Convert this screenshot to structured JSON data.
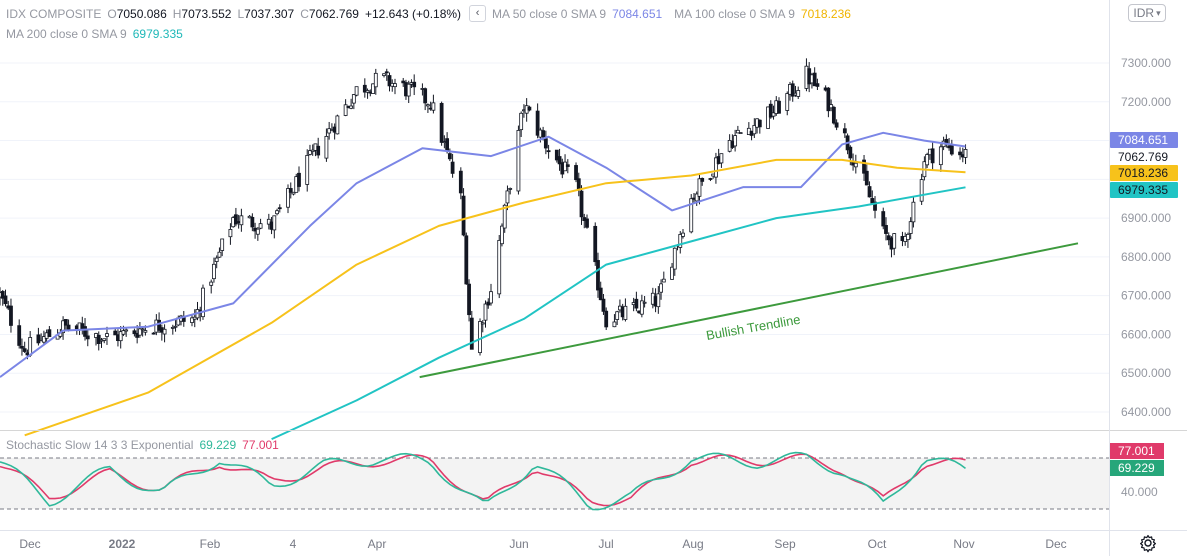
{
  "header": {
    "symbol": "IDX COMPOSITE",
    "open_label": "O",
    "open": "7050.086",
    "high_label": "H",
    "high": "7073.552",
    "low_label": "L",
    "low": "7037.307",
    "close_label": "C",
    "close": "7062.769",
    "change": "+12.643 (+0.18%)",
    "collapse_icon": "chevron-left-icon",
    "ma50_label": "MA 50 close 0 SMA 9",
    "ma50_value": "7084.651",
    "ma100_label": "MA 100 close 0 SMA 9",
    "ma100_value": "7018.236",
    "ma200_label": "MA 200 close 0 SMA 9",
    "ma200_value": "6979.335"
  },
  "currency": {
    "label": "IDR",
    "icon": "chevron-down-icon"
  },
  "price_axis": {
    "ticks": [
      "7300.000",
      "7200.000",
      "7100.000",
      "6900.000",
      "6800.000",
      "6700.000",
      "6600.000",
      "6500.000",
      "6400.000"
    ],
    "badges": [
      {
        "name": "ma50",
        "value": "7084.651",
        "color": "#7b86e6"
      },
      {
        "name": "last-price",
        "value": "7062.769",
        "color": "#ffffff"
      },
      {
        "name": "ma100",
        "value": "7018.236",
        "color": "#f7c21b"
      },
      {
        "name": "ma200",
        "value": "6979.335",
        "color": "#21c4c4"
      }
    ]
  },
  "annotation": {
    "trendline_label": "Bullish Trendline"
  },
  "stochastic": {
    "label": "Stochastic Slow 14 3 3 Exponential",
    "k_value": "69.229",
    "d_value": "77.001",
    "axis_tick": "40.000",
    "badge_d": "77.001",
    "badge_k": "69.229"
  },
  "time_axis": {
    "labels": [
      "Dec",
      "2022",
      "Feb",
      "4",
      "Apr",
      "Jun",
      "Jul",
      "Aug",
      "Sep",
      "Oct",
      "Nov",
      "Dec"
    ]
  },
  "settings_icon": "gear-icon",
  "colors": {
    "up": "#ffffff",
    "down": "#131722",
    "ma50": "#7b86e6",
    "ma100": "#f7c21b",
    "ma200": "#21c4c4",
    "trendline": "#3d9a3d",
    "stoch_k": "#2fb89a",
    "stoch_d": "#e03a6a"
  },
  "chart_data": {
    "type": "candlestick",
    "title": "IDX COMPOSITE",
    "x_range": [
      "2021-11-22",
      "2022-12-20"
    ],
    "ylim": [
      6330,
      7390
    ],
    "price_dates": [
      "2021-11-22",
      "2021-12-01",
      "2021-12-15",
      "2022-01-01",
      "2022-01-15",
      "2022-02-01",
      "2022-02-15",
      "2022-03-01",
      "2022-03-15",
      "2022-04-01",
      "2022-04-10",
      "2022-04-20",
      "2022-04-28",
      "2022-05-09",
      "2022-05-13",
      "2022-05-20",
      "2022-06-01",
      "2022-06-10",
      "2022-06-20",
      "2022-07-01",
      "2022-07-10",
      "2022-07-20",
      "2022-08-01",
      "2022-08-15",
      "2022-09-01",
      "2022-09-12",
      "2022-09-20",
      "2022-10-01",
      "2022-10-10",
      "2022-10-17",
      "2022-10-25",
      "2022-11-01",
      "2022-11-09"
    ],
    "price_close": [
      6700,
      6560,
      6620,
      6590,
      6620,
      6640,
      6900,
      6880,
      7050,
      7230,
      7260,
      7230,
      7200,
      6950,
      6560,
      6720,
      7190,
      7080,
      6980,
      6640,
      6660,
      6690,
      6950,
      7100,
      7180,
      7270,
      7200,
      7030,
      6860,
      6820,
      7050,
      7090,
      7062.769
    ],
    "ma_series": [
      {
        "name": "MA 50",
        "dates": [
          "2021-11-22",
          "2021-12-15",
          "2022-01-15",
          "2022-02-15",
          "2022-03-15",
          "2022-04-01",
          "2022-04-25",
          "2022-05-20",
          "2022-06-10",
          "2022-07-01",
          "2022-07-25",
          "2022-08-20",
          "2022-09-10",
          "2022-09-25",
          "2022-10-10",
          "2022-10-25",
          "2022-11-09"
        ],
        "values": [
          6490,
          6610,
          6620,
          6680,
          6880,
          6990,
          7080,
          7060,
          7110,
          7030,
          6920,
          6980,
          6980,
          7090,
          7120,
          7100,
          7084.651
        ]
      },
      {
        "name": "MA 100",
        "dates": [
          "2021-12-01",
          "2022-01-15",
          "2022-03-01",
          "2022-04-01",
          "2022-05-01",
          "2022-06-01",
          "2022-07-01",
          "2022-08-01",
          "2022-09-01",
          "2022-09-25",
          "2022-10-15",
          "2022-11-09"
        ],
        "values": [
          6340,
          6450,
          6630,
          6780,
          6880,
          6940,
          6990,
          7010,
          7050,
          7050,
          7030,
          7018.236
        ]
      },
      {
        "name": "MA 200",
        "dates": [
          "2022-03-01",
          "2022-04-01",
          "2022-05-01",
          "2022-06-01",
          "2022-07-01",
          "2022-08-01",
          "2022-09-01",
          "2022-10-01",
          "2022-11-09"
        ],
        "values": [
          6330,
          6430,
          6540,
          6640,
          6780,
          6840,
          6900,
          6930,
          6979.335
        ]
      }
    ],
    "trendline": {
      "dates": [
        "2022-04-24",
        "2022-12-20"
      ],
      "values": [
        6490,
        6835
      ]
    },
    "stochastic": {
      "ylim": [
        0,
        100
      ],
      "dates": [
        "2021-11-22",
        "2021-12-10",
        "2022-01-01",
        "2022-01-20",
        "2022-02-10",
        "2022-03-01",
        "2022-03-20",
        "2022-04-10",
        "2022-04-28",
        "2022-05-18",
        "2022-06-05",
        "2022-06-25",
        "2022-07-10",
        "2022-08-01",
        "2022-08-25",
        "2022-09-12",
        "2022-09-25",
        "2022-10-10",
        "2022-10-25",
        "2022-11-09"
      ],
      "k": [
        80,
        30,
        70,
        40,
        85,
        50,
        75,
        85,
        80,
        20,
        80,
        25,
        35,
        85,
        80,
        85,
        70,
        25,
        85,
        69.229
      ],
      "d": [
        78,
        35,
        65,
        45,
        80,
        55,
        72,
        82,
        82,
        25,
        75,
        30,
        33,
        82,
        82,
        83,
        72,
        30,
        80,
        77.001
      ]
    }
  }
}
